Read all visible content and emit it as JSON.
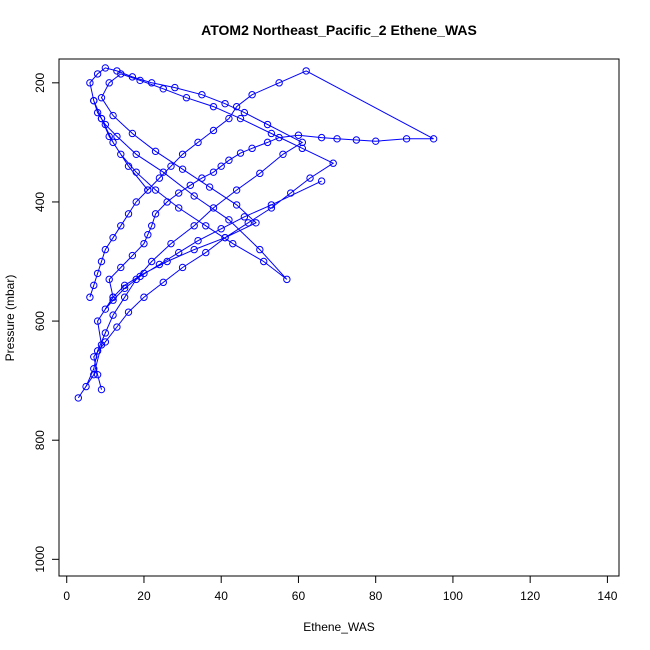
{
  "chart_data": {
    "type": "line",
    "title": "ATOM2 Northeast_Pacific_2 Ethene_WAS",
    "xlabel": "Ethene_WAS",
    "ylabel": "Pressure (mbar)",
    "xlim": [
      -2,
      143
    ],
    "ylim": [
      1028,
      160
    ],
    "y_reversed": true,
    "grid": false,
    "legend": "none",
    "color": "#0000ff",
    "xticks": [
      0,
      20,
      40,
      60,
      80,
      100,
      120,
      140
    ],
    "yticks": [
      200,
      400,
      600,
      800,
      1000
    ],
    "xtick_labels": [
      "0",
      "20",
      "40",
      "60",
      "80",
      "100",
      "120",
      "140"
    ],
    "ytick_labels": [
      "200",
      "400",
      "600",
      "800",
      "1000"
    ],
    "series": [
      {
        "x": [
          3,
          7,
          9,
          8,
          12,
          11,
          14,
          17,
          20,
          21,
          22,
          23,
          26,
          29,
          32,
          35,
          38,
          40,
          42,
          45,
          48,
          52,
          55,
          60,
          66,
          70,
          75,
          80,
          88,
          95,
          62,
          55,
          48,
          44,
          42,
          38,
          34,
          30,
          27,
          24,
          21,
          18,
          16,
          14,
          12,
          10,
          9,
          8,
          7,
          6
        ],
        "y": [
          729,
          690,
          640,
          600,
          560,
          530,
          510,
          490,
          470,
          455,
          440,
          420,
          400,
          385,
          372,
          360,
          350,
          340,
          330,
          318,
          310,
          300,
          292,
          288,
          292,
          294,
          296,
          298,
          294,
          294,
          180,
          200,
          220,
          240,
          260,
          280,
          300,
          320,
          340,
          360,
          380,
          400,
          420,
          440,
          460,
          480,
          500,
          520,
          540,
          560
        ]
      },
      {
        "x": [
          5,
          7,
          8,
          10,
          12,
          15,
          18,
          22,
          27,
          33,
          38,
          44,
          50,
          56,
          61,
          52,
          46,
          41,
          35,
          28,
          22,
          17,
          13,
          10,
          8,
          6,
          7,
          9,
          11,
          14,
          18,
          23,
          29,
          36,
          43,
          51,
          57,
          50,
          42,
          33,
          25,
          18,
          13,
          10,
          8,
          7,
          9,
          12,
          16,
          21
        ],
        "y": [
          710,
          680,
          650,
          620,
          590,
          560,
          530,
          500,
          470,
          440,
          410,
          380,
          352,
          320,
          300,
          270,
          250,
          235,
          220,
          208,
          200,
          190,
          180,
          175,
          185,
          200,
          230,
          260,
          290,
          320,
          350,
          380,
          410,
          440,
          470,
          500,
          530,
          480,
          430,
          390,
          350,
          320,
          290,
          270,
          250,
          230,
          260,
          300,
          340,
          380
        ]
      },
      {
        "x": [
          9,
          8,
          7,
          10,
          13,
          16,
          20,
          25,
          30,
          36,
          41,
          47,
          53,
          58,
          63,
          69,
          61,
          53,
          45,
          38,
          31,
          25,
          19,
          14,
          11,
          9,
          12,
          17,
          23,
          30,
          37,
          44,
          49,
          41,
          33,
          26,
          20,
          15,
          12,
          10,
          12,
          15,
          19,
          24,
          29,
          34,
          40,
          46,
          53,
          66
        ],
        "y": [
          715,
          690,
          660,
          635,
          610,
          585,
          560,
          535,
          510,
          485,
          460,
          435,
          410,
          385,
          360,
          335,
          310,
          285,
          260,
          240,
          225,
          210,
          196,
          185,
          200,
          225,
          255,
          285,
          315,
          345,
          375,
          405,
          435,
          460,
          480,
          500,
          520,
          540,
          560,
          580,
          565,
          545,
          525,
          505,
          485,
          465,
          445,
          425,
          405,
          365
        ]
      }
    ]
  }
}
